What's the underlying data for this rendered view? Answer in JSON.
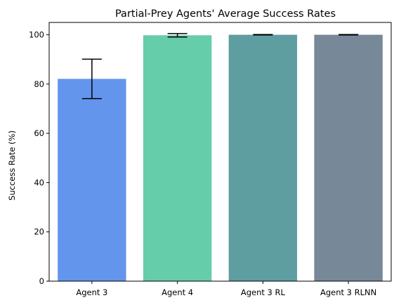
{
  "chart_data": {
    "type": "bar",
    "title": "Partial-Prey Agents' Average Success Rates",
    "xlabel": "",
    "ylabel": "Success Rate (%)",
    "categories": [
      "Agent 3",
      "Agent 4",
      "Agent 3 RL",
      "Agent 3 RLNN"
    ],
    "values": [
      82.1,
      99.8,
      100.0,
      100.0
    ],
    "error": [
      8.0,
      0.7,
      0.1,
      0.1
    ],
    "colors": [
      "#6495ED",
      "#66CDAA",
      "#5F9EA0",
      "#778899"
    ],
    "ylim": [
      0,
      105
    ],
    "yticks": [
      0,
      20,
      40,
      60,
      80,
      100
    ],
    "grid": false
  }
}
